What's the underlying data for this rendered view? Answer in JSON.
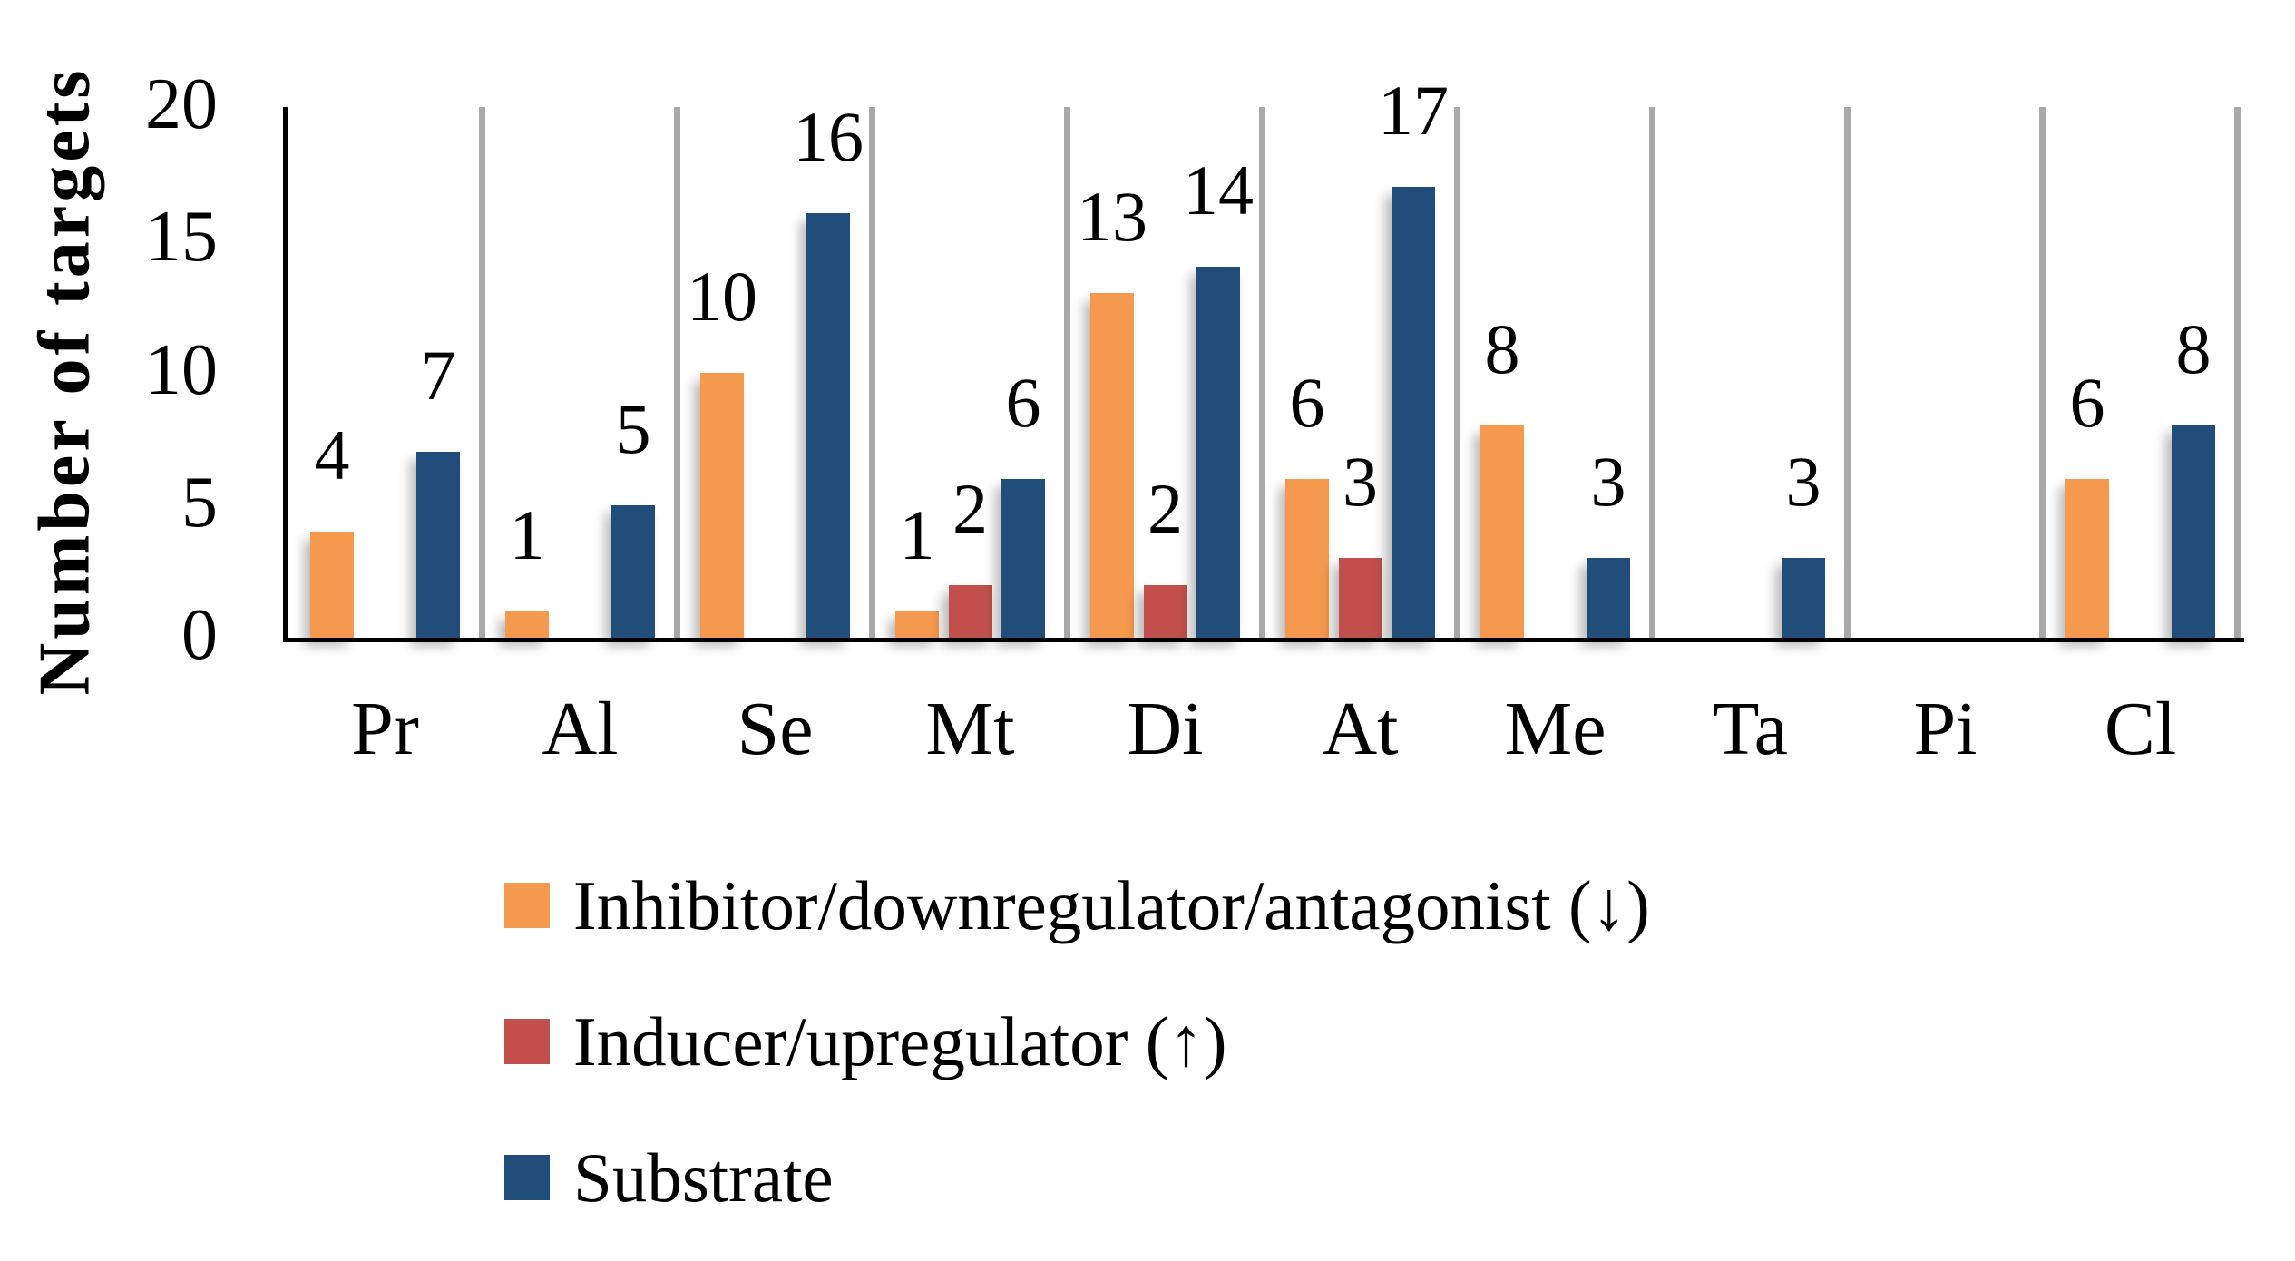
{
  "chart_data": {
    "type": "bar",
    "title": "",
    "xlabel": "",
    "ylabel": "Number of targets",
    "ylim": [
      0,
      20
    ],
    "yticks": [
      20,
      15,
      10,
      5,
      0
    ],
    "grid": "vertical gray dividers between category groups",
    "legend_position": "bottom-left vertical list",
    "bar_value_labels_shown": true,
    "categories": [
      "Pr",
      "Al",
      "Se",
      "Mt",
      "Di",
      "At",
      "Me",
      "Ta",
      "Pi",
      "Cl"
    ],
    "series": [
      {
        "name": "Inhibitor/downregulator/antagonist (↓)",
        "color": "#F5994E",
        "values": [
          4,
          1,
          10,
          1,
          13,
          6,
          8,
          0,
          0,
          6
        ]
      },
      {
        "name": "Inducer/upregulator (↑)",
        "color": "#C1504D",
        "values": [
          0,
          0,
          0,
          2,
          2,
          3,
          0,
          0,
          0,
          0
        ]
      },
      {
        "name": "Substrate",
        "color": "#204D79",
        "values": [
          7,
          5,
          16,
          6,
          14,
          17,
          3,
          3,
          0,
          8
        ]
      }
    ]
  },
  "style": {
    "axis_color": "#000000",
    "divider_color": "#A9A9A9",
    "background": "#FFFFFF",
    "text_color": "#000000"
  }
}
